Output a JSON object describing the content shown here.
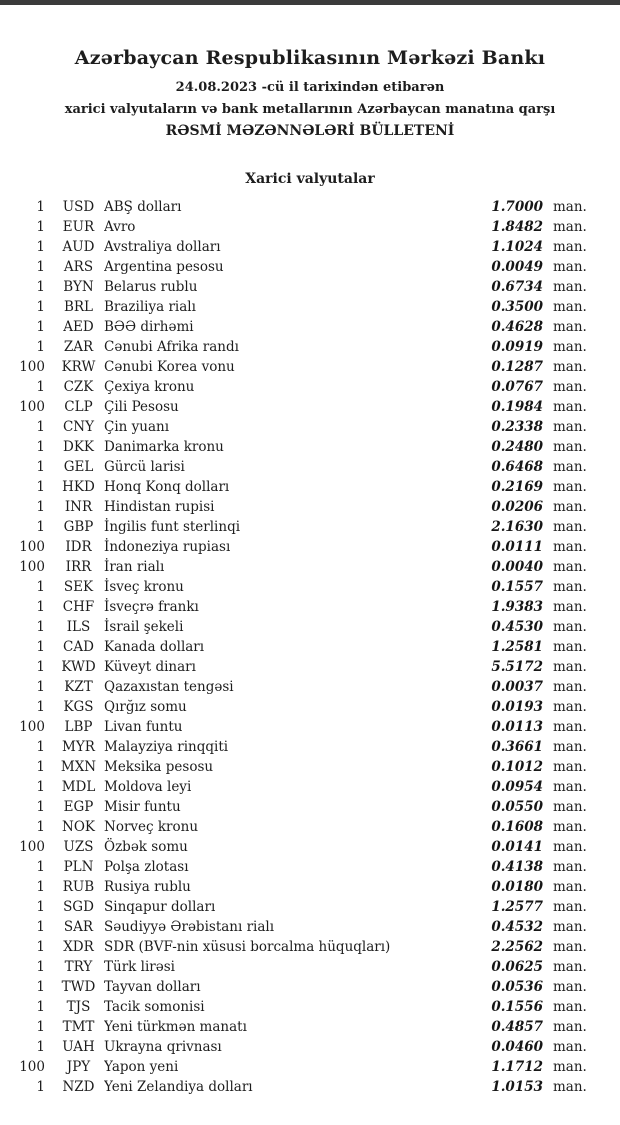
{
  "document": {
    "bank_title": "Azərbaycan Respublikasının Mərkəzi Bankı",
    "date_line": "24.08.2023 -cü il tarixindən etibarən",
    "scope_line": "xarici valyutaların və bank metallarının Azərbaycan manatına qarşı",
    "bulletin_line": "RƏSMİ MƏZƏNNƏLƏRİ BÜLLETENİ",
    "section_title": "Xarici valyutalar"
  },
  "rates": [
    {
      "qty": "1",
      "code": "USD",
      "name": "ABŞ dolları",
      "rate": "1.7000",
      "unit": "man."
    },
    {
      "qty": "1",
      "code": "EUR",
      "name": "Avro",
      "rate": "1.8482",
      "unit": "man."
    },
    {
      "qty": "1",
      "code": "AUD",
      "name": "Avstraliya dolları",
      "rate": "1.1024",
      "unit": "man."
    },
    {
      "qty": "1",
      "code": "ARS",
      "name": "Argentina pesosu",
      "rate": "0.0049",
      "unit": "man."
    },
    {
      "qty": "1",
      "code": "BYN",
      "name": "Belarus rublu",
      "rate": "0.6734",
      "unit": "man."
    },
    {
      "qty": "1",
      "code": "BRL",
      "name": "Braziliya rialı",
      "rate": "0.3500",
      "unit": "man."
    },
    {
      "qty": "1",
      "code": "AED",
      "name": "BƏƏ dirhəmi",
      "rate": "0.4628",
      "unit": "man."
    },
    {
      "qty": "1",
      "code": "ZAR",
      "name": "Cənubi Afrika randı",
      "rate": "0.0919",
      "unit": "man."
    },
    {
      "qty": "100",
      "code": "KRW",
      "name": "Cənubi Korea vonu",
      "rate": "0.1287",
      "unit": "man."
    },
    {
      "qty": "1",
      "code": "CZK",
      "name": "Çexiya kronu",
      "rate": "0.0767",
      "unit": "man."
    },
    {
      "qty": "100",
      "code": "CLP",
      "name": "Çili Pesosu",
      "rate": "0.1984",
      "unit": "man."
    },
    {
      "qty": "1",
      "code": "CNY",
      "name": "Çin yuanı",
      "rate": "0.2338",
      "unit": "man."
    },
    {
      "qty": "1",
      "code": "DKK",
      "name": "Danimarka kronu",
      "rate": "0.2480",
      "unit": "man."
    },
    {
      "qty": "1",
      "code": "GEL",
      "name": "Gürcü larisi",
      "rate": "0.6468",
      "unit": "man."
    },
    {
      "qty": "1",
      "code": "HKD",
      "name": "Honq Konq dolları",
      "rate": "0.2169",
      "unit": "man."
    },
    {
      "qty": "1",
      "code": "INR",
      "name": "Hindistan rupisi",
      "rate": "0.0206",
      "unit": "man."
    },
    {
      "qty": "1",
      "code": "GBP",
      "name": "İngilis funt sterlinqi",
      "rate": "2.1630",
      "unit": "man."
    },
    {
      "qty": "100",
      "code": "IDR",
      "name": "İndoneziya rupiası",
      "rate": "0.0111",
      "unit": "man."
    },
    {
      "qty": "100",
      "code": "IRR",
      "name": "İran rialı",
      "rate": "0.0040",
      "unit": "man."
    },
    {
      "qty": "1",
      "code": "SEK",
      "name": "İsveç kronu",
      "rate": "0.1557",
      "unit": "man."
    },
    {
      "qty": "1",
      "code": "CHF",
      "name": "İsveçrə frankı",
      "rate": "1.9383",
      "unit": "man."
    },
    {
      "qty": "1",
      "code": "ILS",
      "name": "İsrail şekeli",
      "rate": "0.4530",
      "unit": "man."
    },
    {
      "qty": "1",
      "code": "CAD",
      "name": "Kanada dolları",
      "rate": "1.2581",
      "unit": "man."
    },
    {
      "qty": "1",
      "code": "KWD",
      "name": "Küveyt dinarı",
      "rate": "5.5172",
      "unit": "man."
    },
    {
      "qty": "1",
      "code": "KZT",
      "name": "Qazaxıstan tengəsi",
      "rate": "0.0037",
      "unit": "man."
    },
    {
      "qty": "1",
      "code": "KGS",
      "name": "Qırğız somu",
      "rate": "0.0193",
      "unit": "man."
    },
    {
      "qty": "100",
      "code": "LBP",
      "name": "Livan funtu",
      "rate": "0.0113",
      "unit": "man."
    },
    {
      "qty": "1",
      "code": "MYR",
      "name": "Malayziya rinqqiti",
      "rate": "0.3661",
      "unit": "man."
    },
    {
      "qty": "1",
      "code": "MXN",
      "name": "Meksika pesosu",
      "rate": "0.1012",
      "unit": "man."
    },
    {
      "qty": "1",
      "code": "MDL",
      "name": "Moldova leyi",
      "rate": "0.0954",
      "unit": "man."
    },
    {
      "qty": "1",
      "code": "EGP",
      "name": "Misir funtu",
      "rate": "0.0550",
      "unit": "man."
    },
    {
      "qty": "1",
      "code": "NOK",
      "name": "Norveç kronu",
      "rate": "0.1608",
      "unit": "man."
    },
    {
      "qty": "100",
      "code": "UZS",
      "name": "Özbək somu",
      "rate": "0.0141",
      "unit": "man."
    },
    {
      "qty": "1",
      "code": "PLN",
      "name": "Polşa zlotası",
      "rate": "0.4138",
      "unit": "man."
    },
    {
      "qty": "1",
      "code": "RUB",
      "name": "Rusiya rublu",
      "rate": "0.0180",
      "unit": "man."
    },
    {
      "qty": "1",
      "code": "SGD",
      "name": "Sinqapur dolları",
      "rate": "1.2577",
      "unit": "man."
    },
    {
      "qty": "1",
      "code": "SAR",
      "name": "Səudiyyə Ərəbistanı rialı",
      "rate": "0.4532",
      "unit": "man."
    },
    {
      "qty": "1",
      "code": "XDR",
      "name": "SDR (BVF-nin xüsusi borcalma hüquqları)",
      "rate": "2.2562",
      "unit": "man."
    },
    {
      "qty": "1",
      "code": "TRY",
      "name": "Türk lirəsi",
      "rate": "0.0625",
      "unit": "man."
    },
    {
      "qty": "1",
      "code": "TWD",
      "name": "Tayvan dolları",
      "rate": "0.0536",
      "unit": "man."
    },
    {
      "qty": "1",
      "code": "TJS",
      "name": "Tacik somonisi",
      "rate": "0.1556",
      "unit": "man."
    },
    {
      "qty": "1",
      "code": "TMT",
      "name": "Yeni türkmən manatı",
      "rate": "0.4857",
      "unit": "man."
    },
    {
      "qty": "1",
      "code": "UAH",
      "name": "Ukrayna qrivnası",
      "rate": "0.0460",
      "unit": "man."
    },
    {
      "qty": "100",
      "code": "JPY",
      "name": "Yapon yeni",
      "rate": "1.1712",
      "unit": "man."
    },
    {
      "qty": "1",
      "code": "NZD",
      "name": "Yeni Zelandiya dolları",
      "rate": "1.0153",
      "unit": "man."
    }
  ]
}
